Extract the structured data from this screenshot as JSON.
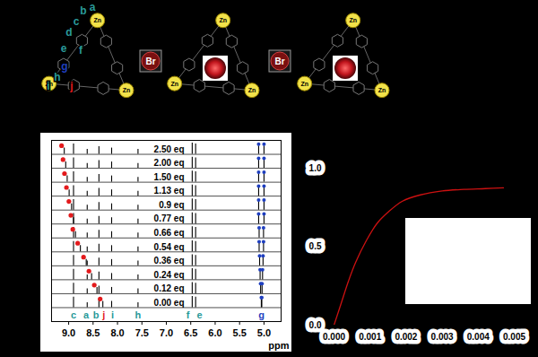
{
  "diagram": {
    "structure_labels": [
      "a",
      "b",
      "c",
      "d",
      "e",
      "f",
      "g",
      "h",
      "i",
      "j"
    ],
    "structure_label_colors": [
      "#2a9a9a",
      "#2a9a9a",
      "#2a9a9a",
      "#2a9a9a",
      "#2a9a9a",
      "#2a9a9a",
      "#1f3fbf",
      "#2a9a9a",
      "#2a9a9a",
      "#e31a1c"
    ],
    "metal_label": "Zn",
    "anion_label": "Br"
  },
  "chart_data": [
    {
      "type": "spectra",
      "x_label": "ppm",
      "xlim": [
        9.35,
        4.65
      ],
      "xticks": [
        {
          "value": 9,
          "label": "9.0"
        },
        8.5,
        {
          "value": 8,
          "label": "8.0"
        },
        7.5,
        {
          "value": 7,
          "label": "7.0"
        },
        6.5,
        {
          "value": 6,
          "label": "6.0"
        },
        5.5,
        {
          "value": 5,
          "label": "5.0"
        }
      ],
      "tick_labels": "x",
      "color": "#000000",
      "series": [
        {
          "name": "0.00 eq",
          "x": [
            8.9,
            8.62,
            8.38,
            8.3,
            8.12,
            7.58,
            6.47,
            6.4,
            5.055,
            5.045
          ],
          "values": [
            0.75,
            0.35,
            0.55,
            0.45,
            0.45,
            0.35,
            0.8,
            0.75,
            0.6,
            0.6
          ]
        },
        {
          "name": "0.12 eq",
          "x": [
            8.9,
            8.62,
            8.38,
            8.42,
            8.12,
            7.58,
            6.47,
            6.4,
            5.07,
            5.04
          ],
          "values": [
            0.75,
            0.35,
            0.55,
            0.45,
            0.45,
            0.35,
            0.8,
            0.75,
            0.6,
            0.6
          ]
        },
        {
          "name": "0.24 eq",
          "x": [
            8.9,
            8.62,
            8.38,
            8.53,
            8.12,
            7.58,
            6.47,
            6.4,
            5.08,
            5.03
          ],
          "values": [
            0.75,
            0.35,
            0.55,
            0.45,
            0.45,
            0.35,
            0.8,
            0.75,
            0.6,
            0.6
          ]
        },
        {
          "name": "0.36 eq",
          "x": [
            8.9,
            8.62,
            8.38,
            8.64,
            8.12,
            7.58,
            6.47,
            6.4,
            5.09,
            5.02
          ],
          "values": [
            0.75,
            0.35,
            0.55,
            0.45,
            0.45,
            0.35,
            0.8,
            0.75,
            0.6,
            0.6
          ]
        },
        {
          "name": "0.54 eq",
          "x": [
            8.9,
            8.62,
            8.38,
            8.76,
            8.12,
            7.58,
            6.47,
            6.4,
            5.1,
            5.01
          ],
          "values": [
            0.75,
            0.35,
            0.55,
            0.45,
            0.45,
            0.35,
            0.8,
            0.75,
            0.6,
            0.6
          ]
        },
        {
          "name": "0.66 eq",
          "x": [
            8.9,
            8.62,
            8.38,
            8.86,
            8.12,
            7.58,
            6.47,
            6.4,
            5.1,
            5.01
          ],
          "values": [
            0.75,
            0.35,
            0.55,
            0.45,
            0.45,
            0.35,
            0.8,
            0.75,
            0.6,
            0.6
          ]
        },
        {
          "name": "0.77 eq",
          "x": [
            8.9,
            8.62,
            8.38,
            8.9,
            8.12,
            7.58,
            6.47,
            6.4,
            5.11,
            5.0
          ],
          "values": [
            0.75,
            0.35,
            0.55,
            0.45,
            0.45,
            0.35,
            0.8,
            0.75,
            0.6,
            0.6
          ]
        },
        {
          "name": "0.9 eq",
          "x": [
            8.9,
            8.62,
            8.38,
            8.94,
            8.12,
            7.58,
            6.47,
            6.4,
            5.11,
            5.0
          ],
          "values": [
            0.75,
            0.35,
            0.55,
            0.45,
            0.45,
            0.35,
            0.8,
            0.75,
            0.6,
            0.6
          ]
        },
        {
          "name": "1.13 eq",
          "x": [
            8.9,
            8.62,
            8.38,
            8.99,
            8.12,
            7.58,
            6.47,
            6.4,
            5.11,
            5.0
          ],
          "values": [
            0.75,
            0.35,
            0.55,
            0.45,
            0.45,
            0.35,
            0.8,
            0.75,
            0.6,
            0.6
          ]
        },
        {
          "name": "1.50 eq",
          "x": [
            8.9,
            8.62,
            8.38,
            9.03,
            8.12,
            7.58,
            6.47,
            6.4,
            5.11,
            5.0
          ],
          "values": [
            0.75,
            0.35,
            0.55,
            0.45,
            0.45,
            0.35,
            0.8,
            0.75,
            0.6,
            0.6
          ]
        },
        {
          "name": "2.00 eq",
          "x": [
            8.9,
            8.62,
            8.38,
            9.06,
            8.12,
            7.58,
            6.47,
            6.4,
            5.11,
            5.0
          ],
          "values": [
            0.75,
            0.35,
            0.55,
            0.45,
            0.45,
            0.35,
            0.8,
            0.75,
            0.6,
            0.6
          ]
        },
        {
          "name": "2.50 eq",
          "x": [
            8.9,
            8.62,
            8.38,
            9.09,
            8.12,
            7.58,
            6.47,
            6.4,
            5.11,
            5.0
          ],
          "values": [
            0.75,
            0.35,
            0.55,
            0.45,
            0.45,
            0.35,
            0.8,
            0.75,
            0.6,
            0.6
          ]
        }
      ],
      "peak_labels": {
        "labels": [
          "c",
          "a",
          "b",
          "j",
          "i",
          "h",
          "f",
          "e",
          "g"
        ],
        "x": [
          8.9,
          8.64,
          8.44,
          8.28,
          8.1,
          7.58,
          6.56,
          6.32,
          5.05
        ],
        "colors": [
          "#2a9a9a",
          "#2a9a9a",
          "#2a9a9a",
          "#e31a1c",
          "#2a9a9a",
          "#2a9a9a",
          "#2a9a9a",
          "#2a9a9a",
          "#1f3fbf"
        ]
      },
      "markers": [
        {
          "color": "#e31a1c",
          "x": [
            8.3,
            8.42,
            8.53,
            8.64,
            8.76,
            8.86,
            8.9,
            8.94,
            8.99,
            9.03,
            9.06,
            9.09
          ]
        },
        {
          "color": "#1f3fbf",
          "x": [
            [
              5.055,
              5.045
            ],
            [
              5.07,
              5.04
            ],
            [
              5.08,
              5.03
            ],
            [
              5.09,
              5.02
            ],
            [
              5.1,
              5.01
            ],
            [
              5.1,
              5.01
            ],
            [
              5.11,
              5.0
            ],
            [
              5.11,
              5.0
            ],
            [
              5.11,
              5.0
            ],
            [
              5.11,
              5.0
            ],
            [
              5.11,
              5.0
            ],
            [
              5.11,
              5.0
            ]
          ]
        }
      ]
    },
    {
      "type": "line",
      "color": "#cc1111",
      "xlim": [
        0,
        0.005
      ],
      "xticks": [
        {
          "value": 0,
          "label": "0.000"
        },
        {
          "value": 0.001,
          "label": "0.001"
        },
        {
          "value": 0.002,
          "label": "0.002"
        },
        {
          "value": 0.003,
          "label": "0.003"
        },
        {
          "value": 0.004,
          "label": "0.004"
        },
        {
          "value": 0.005,
          "label": "0.005"
        }
      ],
      "ylim": [
        0,
        1
      ],
      "yticks": [
        {
          "value": 0,
          "label": "0.0"
        },
        0.5,
        {
          "value": 1,
          "label": "1.0"
        }
      ],
      "x": [
        0,
        0.0002,
        0.0004,
        0.0006,
        0.0009,
        0.0012,
        0.0015,
        0.0019,
        0.0024,
        0.003,
        0.0036,
        0.0042,
        0.0047
      ],
      "values": [
        0,
        0.14,
        0.28,
        0.4,
        0.54,
        0.65,
        0.72,
        0.79,
        0.83,
        0.855,
        0.865,
        0.87,
        0.875
      ]
    }
  ]
}
